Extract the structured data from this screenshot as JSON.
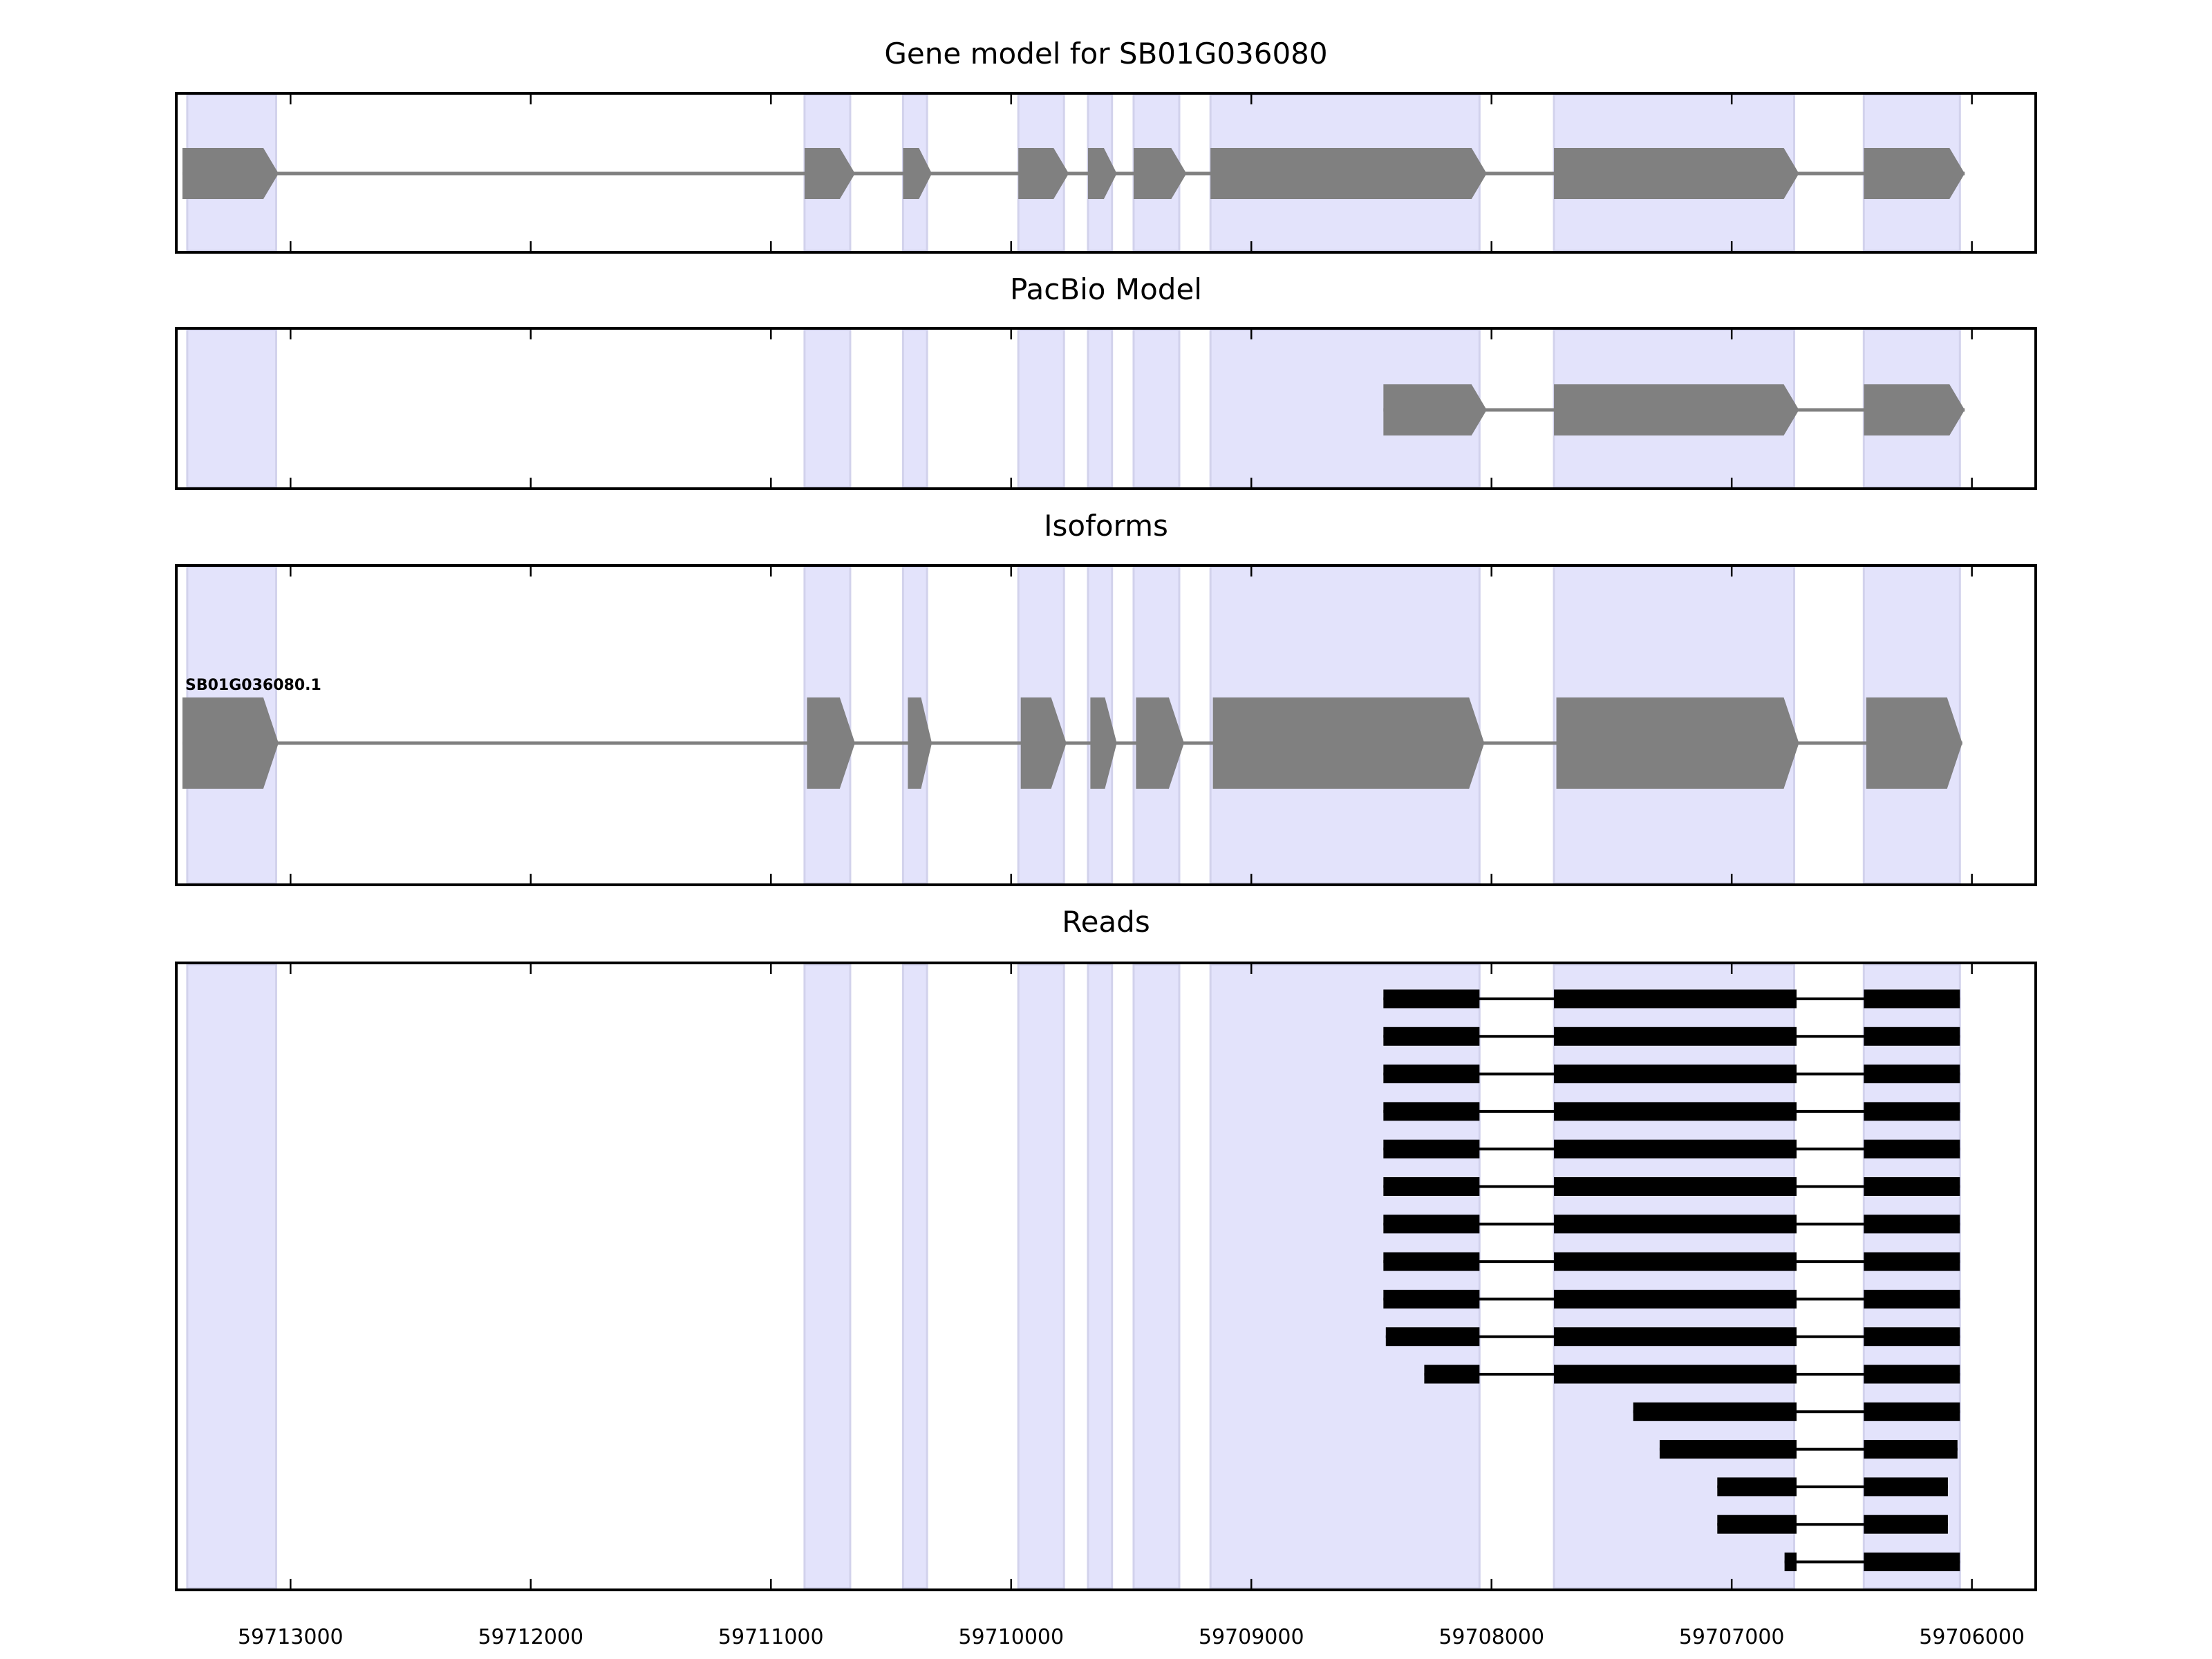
{
  "colors": {
    "exon_band": "#e3e3fb",
    "exon_band_edge": "#d2d2ec",
    "model_fill": "#808080",
    "read_fill": "#000000",
    "frame": "#000000"
  },
  "axis": {
    "xlim": [
      59713470,
      59705740
    ],
    "ticks": [
      59713000,
      59712000,
      59711000,
      59710000,
      59709000,
      59708000,
      59707000,
      59706000
    ],
    "tick_labels": [
      "59713000",
      "59712000",
      "59711000",
      "59710000",
      "59709000",
      "59708000",
      "59707000",
      "59706000"
    ]
  },
  "exon_bands": [
    [
      59713430,
      59713060
    ],
    [
      59710860,
      59710670
    ],
    [
      59710450,
      59710350
    ],
    [
      59709970,
      59709780
    ],
    [
      59709680,
      59709580
    ],
    [
      59709490,
      59709300
    ],
    [
      59709170,
      59708050
    ],
    [
      59707740,
      59706740
    ],
    [
      59706450,
      59706050
    ]
  ],
  "panels": [
    {
      "id": "gene-model",
      "title": "Gene model for SB01G036080",
      "exons": [
        [
          59713450,
          59713050
        ],
        [
          59710860,
          59710650
        ],
        [
          59710450,
          59710330
        ],
        [
          59709970,
          59709760
        ],
        [
          59709680,
          59709560
        ],
        [
          59709490,
          59709270
        ],
        [
          59709170,
          59708020
        ],
        [
          59707740,
          59706720
        ],
        [
          59706450,
          59706030
        ]
      ]
    },
    {
      "id": "pacbio-model",
      "title": "PacBio Model",
      "exons": [
        [
          59708450,
          59708020
        ],
        [
          59707740,
          59706720
        ],
        [
          59706450,
          59706030
        ]
      ]
    },
    {
      "id": "isoforms",
      "title": "Isoforms",
      "isoform_label": "SB01G036080.1",
      "exons": [
        [
          59713450,
          59713050
        ],
        [
          59710850,
          59710650
        ],
        [
          59710430,
          59710330
        ],
        [
          59709960,
          59709770
        ],
        [
          59709670,
          59709560
        ],
        [
          59709480,
          59709280
        ],
        [
          59709160,
          59708030
        ],
        [
          59707730,
          59706720
        ],
        [
          59706440,
          59706040
        ]
      ]
    },
    {
      "id": "reads",
      "title": "Reads"
    }
  ],
  "reads": [
    [
      [
        59708450,
        59708050
      ],
      [
        59707740,
        59706730
      ],
      [
        59706450,
        59706050
      ]
    ],
    [
      [
        59708450,
        59708050
      ],
      [
        59707740,
        59706730
      ],
      [
        59706450,
        59706050
      ]
    ],
    [
      [
        59708450,
        59708050
      ],
      [
        59707740,
        59706730
      ],
      [
        59706450,
        59706050
      ]
    ],
    [
      [
        59708450,
        59708050
      ],
      [
        59707740,
        59706730
      ],
      [
        59706450,
        59706050
      ]
    ],
    [
      [
        59708450,
        59708050
      ],
      [
        59707740,
        59706730
      ],
      [
        59706450,
        59706050
      ]
    ],
    [
      [
        59708450,
        59708050
      ],
      [
        59707740,
        59706730
      ],
      [
        59706450,
        59706050
      ]
    ],
    [
      [
        59708450,
        59708050
      ],
      [
        59707740,
        59706730
      ],
      [
        59706450,
        59706050
      ]
    ],
    [
      [
        59708450,
        59708050
      ],
      [
        59707740,
        59706730
      ],
      [
        59706450,
        59706050
      ]
    ],
    [
      [
        59708450,
        59708050
      ],
      [
        59707740,
        59706730
      ],
      [
        59706450,
        59706050
      ]
    ],
    [
      [
        59708440,
        59708050
      ],
      [
        59707740,
        59706730
      ],
      [
        59706450,
        59706050
      ]
    ],
    [
      [
        59708280,
        59708050
      ],
      [
        59707740,
        59706730
      ],
      [
        59706450,
        59706050
      ]
    ],
    [
      [
        59707410,
        59706730
      ],
      [
        59706450,
        59706050
      ]
    ],
    [
      [
        59707300,
        59706730
      ],
      [
        59706450,
        59706060
      ]
    ],
    [
      [
        59707060,
        59706730
      ],
      [
        59706450,
        59706100
      ]
    ],
    [
      [
        59707060,
        59706730
      ],
      [
        59706450,
        59706100
      ]
    ],
    [
      [
        59706780,
        59706730
      ],
      [
        59706450,
        59706050
      ]
    ]
  ]
}
